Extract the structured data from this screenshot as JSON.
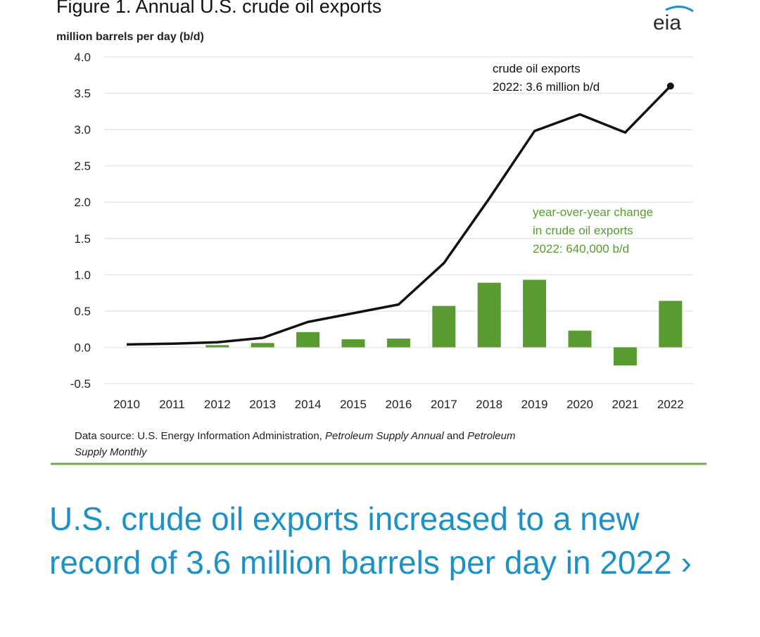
{
  "figure": {
    "title": "Figure 1. Annual U.S. crude oil exports",
    "logo_text": "eia",
    "source_prefix": "Data source: U.S. Energy Information Administration, ",
    "source_italic_1": "Petroleum Supply Annual",
    "source_and": " and ",
    "source_italic_2": "Petroleum",
    "source_line2": "Supply Monthly"
  },
  "chart_data": {
    "type": "bar",
    "title": "Figure 1. Annual U.S. crude oil exports",
    "ylabel": "million barrels per day (b/d)",
    "xlabel": "",
    "ylim": [
      -0.5,
      4.0
    ],
    "yticks": [
      "4.0",
      "3.5",
      "3.0",
      "2.5",
      "2.0",
      "1.5",
      "1.0",
      "0.5",
      "0.0",
      "-0.5"
    ],
    "ytick_values": [
      4.0,
      3.5,
      3.0,
      2.5,
      2.0,
      1.5,
      1.0,
      0.5,
      0.0,
      -0.5
    ],
    "categories": [
      "2010",
      "2011",
      "2012",
      "2013",
      "2014",
      "2015",
      "2016",
      "2017",
      "2018",
      "2019",
      "2020",
      "2021",
      "2022"
    ],
    "grid": true,
    "series": [
      {
        "name": "crude oil exports",
        "type": "line",
        "color": "#111111",
        "values": [
          0.04,
          0.05,
          0.07,
          0.13,
          0.35,
          0.47,
          0.59,
          1.16,
          2.05,
          2.98,
          3.21,
          2.96,
          3.6
        ]
      },
      {
        "name": "year-over-year change in crude oil exports",
        "type": "bar",
        "color": "#5a9a33",
        "values": [
          0.0,
          0.0,
          0.03,
          0.06,
          0.21,
          0.11,
          0.12,
          0.57,
          0.89,
          0.93,
          0.23,
          -0.25,
          0.64
        ]
      }
    ],
    "annotations": {
      "line_label_1": "crude oil exports",
      "line_label_2": "2022: 3.6 million b/d",
      "bar_label_1": "year-over-year change",
      "bar_label_2": "in crude oil exports",
      "bar_label_3": "2022: 640,000 b/d"
    },
    "colors": {
      "line": "#111111",
      "bar": "#5a9a33",
      "annotation_green": "#5a9a33"
    }
  },
  "headline": {
    "text": "U.S. crude oil exports increased to a new record of 3.6 million barrels per day in 2022 ›",
    "color": "#1b91c7"
  },
  "divider_color": "#6ab04c"
}
